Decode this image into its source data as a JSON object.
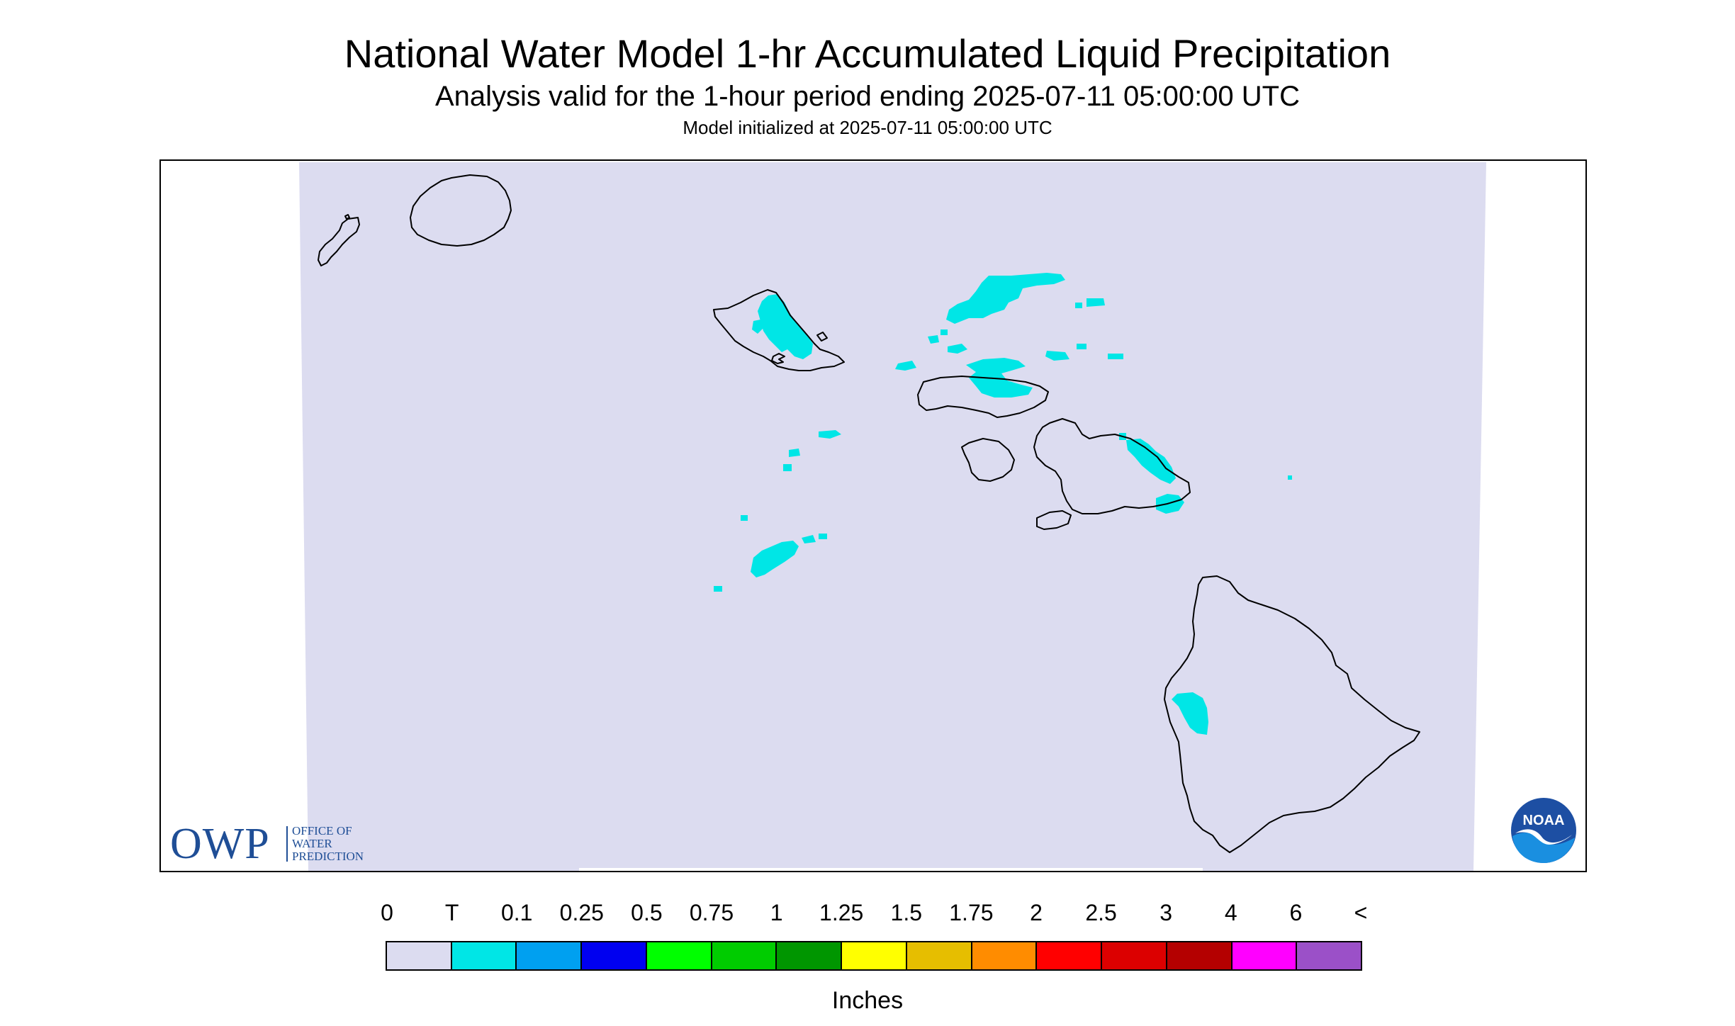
{
  "header": {
    "title": "National Water Model 1-hr Accumulated Liquid Precipitation",
    "subtitle": "Analysis valid for the 1-hour period ending 2025-07-11 05:00:00 UTC",
    "init": "Model initialized at 2025-07-11 05:00:00 UTC"
  },
  "map": {
    "background_color": "#dcdcf0",
    "precip_color": "#00e6e6",
    "coastline_color": "#000000",
    "islands": [
      "niihau",
      "kauai",
      "oahu",
      "molokai",
      "lanai",
      "maui",
      "kahoolawe",
      "hawaii"
    ]
  },
  "logos": {
    "owp_letters": "OWP",
    "owp_text": [
      "OFFICE OF",
      "WATER",
      "PREDICTION"
    ],
    "noaa_text": "NOAA"
  },
  "legend": {
    "labels": [
      "0",
      "T",
      "0.1",
      "0.25",
      "0.5",
      "0.75",
      "1",
      "1.25",
      "1.5",
      "1.75",
      "2",
      "2.5",
      "3",
      "4",
      "6",
      "<"
    ],
    "colors": [
      "#dcdcf0",
      "#00e6e6",
      "#00a0f0",
      "#0000f0",
      "#00ff00",
      "#00cc00",
      "#009600",
      "#ffff00",
      "#e6be00",
      "#ff8c00",
      "#ff0000",
      "#dc0000",
      "#b40000",
      "#ff00ff",
      "#9b50c8"
    ],
    "units": "Inches"
  }
}
